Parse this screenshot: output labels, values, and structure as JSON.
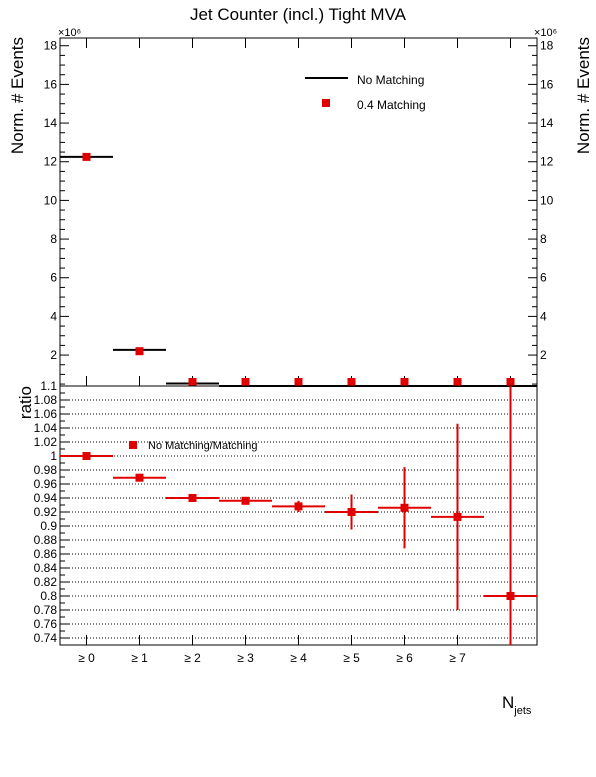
{
  "chart_data": [
    {
      "type": "scatter",
      "title": "Jet Counter (incl.) Tight MVA",
      "ylabel": "Norm. # Events",
      "y_multiplier": "×10⁶",
      "ylim": [
        0.4,
        18.4
      ],
      "yticks": [
        2,
        4,
        6,
        8,
        10,
        12,
        14,
        16,
        18
      ],
      "xlim": [
        -0.5,
        8.5
      ],
      "legend_placement": "top-right",
      "series": [
        {
          "name": "No Matching",
          "style": "line",
          "color": "#000000",
          "points": [
            {
              "x": 0,
              "y": 12.25
            },
            {
              "x": 1,
              "y": 2.27
            },
            {
              "x": 2,
              "y": 0.53
            },
            {
              "x": 3,
              "y": 0.12
            },
            {
              "x": 4,
              "y": 0.05
            },
            {
              "x": 5,
              "y": 0.03
            },
            {
              "x": 6,
              "y": 0.02
            },
            {
              "x": 7,
              "y": 0.01
            },
            {
              "x": 8,
              "y": 0.0
            }
          ]
        },
        {
          "name": "0.4 Matching",
          "style": "marker",
          "color": "#e00000",
          "points": [
            {
              "x": 0,
              "y": 12.25
            },
            {
              "x": 1,
              "y": 2.2
            },
            {
              "x": 2,
              "y": 0.5
            },
            {
              "x": 3,
              "y": 0.11
            },
            {
              "x": 4,
              "y": 0.05
            },
            {
              "x": 5,
              "y": 0.03
            },
            {
              "x": 6,
              "y": 0.02
            },
            {
              "x": 7,
              "y": 0.01
            },
            {
              "x": 8,
              "y": 0.0
            }
          ]
        }
      ]
    },
    {
      "type": "scatter",
      "ylabel": "ratio",
      "xlabel_main": "N",
      "xlabel_sub": "jets",
      "ylim": [
        0.73,
        1.1
      ],
      "yticks": [
        0.74,
        0.76,
        0.78,
        0.8,
        0.82,
        0.84,
        0.86,
        0.88,
        0.9,
        0.92,
        0.94,
        0.96,
        0.98,
        1,
        1.02,
        1.04,
        1.06,
        1.08,
        1.1
      ],
      "grid": "horizontal-dotted",
      "xlim": [
        -0.5,
        8.5
      ],
      "categories": [
        "≥ 0",
        "≥ 1",
        "≥ 2",
        "≥ 3",
        "≥ 4",
        "≥ 5",
        "≥ 6",
        "≥ 7"
      ],
      "legend_placement": "top-left",
      "series": [
        {
          "name": "No Matching/Matching",
          "color": "#e00000",
          "points": [
            {
              "x": 0,
              "y": 1.0,
              "err": 0.0005
            },
            {
              "x": 1,
              "y": 0.969,
              "err": 0.001
            },
            {
              "x": 2,
              "y": 0.94,
              "err": 0.002
            },
            {
              "x": 3,
              "y": 0.936,
              "err": 0.003
            },
            {
              "x": 4,
              "y": 0.928,
              "err": 0.008
            },
            {
              "x": 5,
              "y": 0.92,
              "err": 0.025
            },
            {
              "x": 6,
              "y": 0.926,
              "err": 0.058
            },
            {
              "x": 7,
              "y": 0.913,
              "err": 0.133
            },
            {
              "x": 8,
              "y": 0.8,
              "err": 0.3
            }
          ]
        }
      ]
    }
  ]
}
